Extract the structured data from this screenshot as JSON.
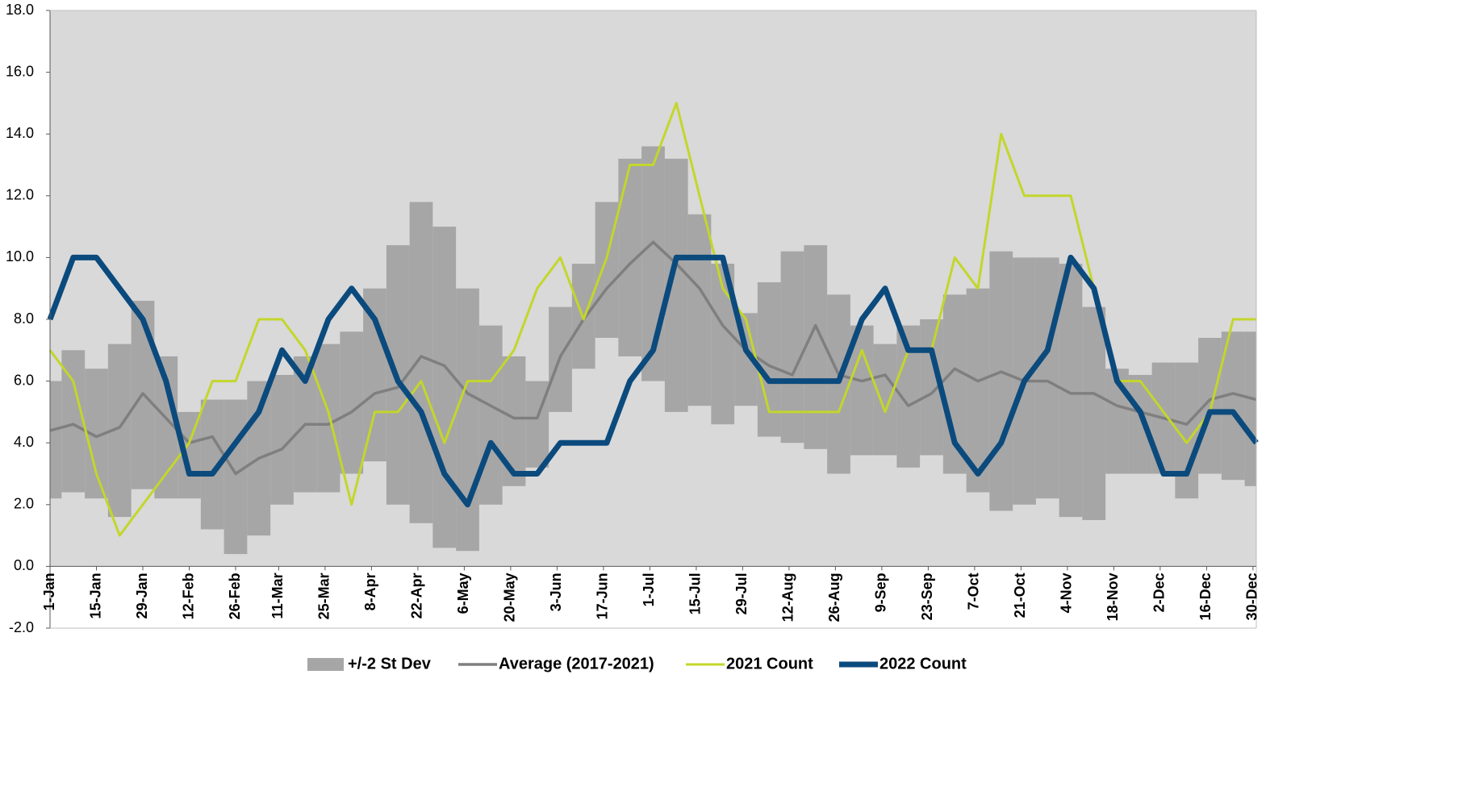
{
  "chart_data": {
    "type": "line",
    "x": [
      1,
      8,
      15,
      22,
      29,
      36,
      43,
      50,
      57,
      64,
      71,
      78,
      85,
      92,
      99,
      106,
      113,
      120,
      127,
      134,
      141,
      148,
      155,
      162,
      169,
      176,
      183,
      190,
      197,
      204,
      211,
      218,
      225,
      232,
      239,
      246,
      253,
      260,
      267,
      274,
      281,
      288,
      295,
      302,
      309,
      316,
      323,
      330,
      337,
      344,
      351,
      358,
      365
    ],
    "xlim": [
      1,
      365
    ],
    "xticks": [
      {
        "value": 1,
        "label": "1-Jan"
      },
      {
        "value": 15,
        "label": "15-Jan"
      },
      {
        "value": 29,
        "label": "29-Jan"
      },
      {
        "value": 43,
        "label": "12-Feb"
      },
      {
        "value": 57,
        "label": "26-Feb"
      },
      {
        "value": 70,
        "label": "11-Mar"
      },
      {
        "value": 84,
        "label": "25-Mar"
      },
      {
        "value": 98,
        "label": "8-Apr"
      },
      {
        "value": 112,
        "label": "22-Apr"
      },
      {
        "value": 126,
        "label": "6-May"
      },
      {
        "value": 140,
        "label": "20-May"
      },
      {
        "value": 154,
        "label": "3-Jun"
      },
      {
        "value": 168,
        "label": "17-Jun"
      },
      {
        "value": 182,
        "label": "1-Jul"
      },
      {
        "value": 196,
        "label": "15-Jul"
      },
      {
        "value": 210,
        "label": "29-Jul"
      },
      {
        "value": 224,
        "label": "12-Aug"
      },
      {
        "value": 238,
        "label": "26-Aug"
      },
      {
        "value": 252,
        "label": "9-Sep"
      },
      {
        "value": 266,
        "label": "23-Sep"
      },
      {
        "value": 280,
        "label": "7-Oct"
      },
      {
        "value": 294,
        "label": "21-Oct"
      },
      {
        "value": 308,
        "label": "4-Nov"
      },
      {
        "value": 322,
        "label": "18-Nov"
      },
      {
        "value": 336,
        "label": "2-Dec"
      },
      {
        "value": 350,
        "label": "16-Dec"
      },
      {
        "value": 364,
        "label": "30-Dec"
      }
    ],
    "ylim": [
      -2,
      18
    ],
    "yticks": [
      {
        "value": -2,
        "label": "-2.0"
      },
      {
        "value": 0,
        "label": "0.0"
      },
      {
        "value": 2,
        "label": "2.0"
      },
      {
        "value": 4,
        "label": "4.0"
      },
      {
        "value": 6,
        "label": "6.0"
      },
      {
        "value": 8,
        "label": "8.0"
      },
      {
        "value": 10,
        "label": "10.0"
      },
      {
        "value": 12,
        "label": "12.0"
      },
      {
        "value": 14,
        "label": "14.0"
      },
      {
        "value": 16,
        "label": "16.0"
      },
      {
        "value": 18,
        "label": "18.0"
      }
    ],
    "series": [
      {
        "name": "+/-2 St Dev",
        "color": "#a6a6a6",
        "lower": [
          2.2,
          2.4,
          2.2,
          1.6,
          2.5,
          2.2,
          2.2,
          1.2,
          0.4,
          1.0,
          2.0,
          2.4,
          2.4,
          3.0,
          3.4,
          2.0,
          1.4,
          0.6,
          0.5,
          2.0,
          2.6,
          3.2,
          5.0,
          6.4,
          7.4,
          6.8,
          6.0,
          5.0,
          5.2,
          4.6,
          5.2,
          4.2,
          4.0,
          3.8,
          3.0,
          3.6,
          3.6,
          3.2,
          3.6,
          3.0,
          2.4,
          1.8,
          2.0,
          2.2,
          1.6,
          1.5,
          3.0,
          3.0,
          3.0,
          2.2,
          3.0,
          2.8,
          2.6
        ],
        "upper": [
          6.0,
          7.0,
          6.4,
          7.2,
          8.6,
          6.8,
          5.0,
          5.4,
          5.4,
          6.0,
          6.2,
          6.8,
          7.2,
          7.6,
          9.0,
          10.4,
          11.8,
          11.0,
          9.0,
          7.8,
          6.8,
          6.0,
          8.4,
          9.8,
          11.8,
          13.2,
          13.6,
          13.2,
          11.4,
          9.8,
          8.2,
          9.2,
          10.2,
          10.4,
          8.8,
          7.8,
          7.2,
          7.8,
          8.0,
          8.8,
          9.0,
          10.2,
          10.0,
          10.0,
          9.8,
          8.4,
          6.4,
          6.2,
          6.6,
          6.6,
          7.4,
          7.6,
          7.6
        ]
      },
      {
        "name": "Average (2017-2021)",
        "color": "#7f7f7f",
        "values": [
          4.4,
          4.6,
          4.2,
          4.5,
          5.6,
          4.8,
          4.0,
          4.2,
          3.0,
          3.5,
          3.8,
          4.6,
          4.6,
          5.0,
          5.6,
          5.8,
          6.8,
          6.5,
          5.6,
          5.2,
          4.8,
          4.8,
          6.8,
          8.0,
          9.0,
          9.8,
          10.5,
          9.8,
          9.0,
          7.8,
          7.0,
          6.5,
          6.2,
          7.8,
          6.2,
          6.0,
          6.2,
          5.2,
          5.6,
          6.4,
          6.0,
          6.3,
          6.0,
          6.0,
          5.6,
          5.6,
          5.2,
          5.0,
          4.8,
          4.6,
          5.4,
          5.6,
          5.4
        ]
      },
      {
        "name": "2021 Count",
        "color": "#c3d62b",
        "values": [
          7,
          6,
          3,
          1,
          2,
          3,
          4,
          6,
          6,
          8,
          8,
          7,
          5,
          2,
          5,
          5,
          6,
          4,
          6,
          6,
          7,
          9,
          10,
          8,
          10,
          13,
          13,
          15,
          12,
          9,
          8,
          5,
          5,
          5,
          5,
          7,
          5,
          7,
          7,
          10,
          9,
          14,
          12,
          12,
          12,
          9,
          6,
          6,
          5,
          4,
          5,
          8,
          8
        ]
      },
      {
        "name": "2022 Count",
        "color": "#0b4a7d",
        "values": [
          8,
          10,
          10,
          9,
          8,
          6,
          3,
          3,
          4,
          5,
          7,
          6,
          8,
          9,
          8,
          6,
          5,
          3,
          2,
          4,
          3,
          3,
          4,
          4,
          4,
          6,
          7,
          10,
          10,
          10,
          7,
          6,
          6,
          6,
          6,
          8,
          9,
          7,
          7,
          4,
          3,
          4,
          6,
          7,
          10,
          9,
          6,
          5,
          3,
          3,
          5,
          5,
          4
        ]
      }
    ]
  }
}
